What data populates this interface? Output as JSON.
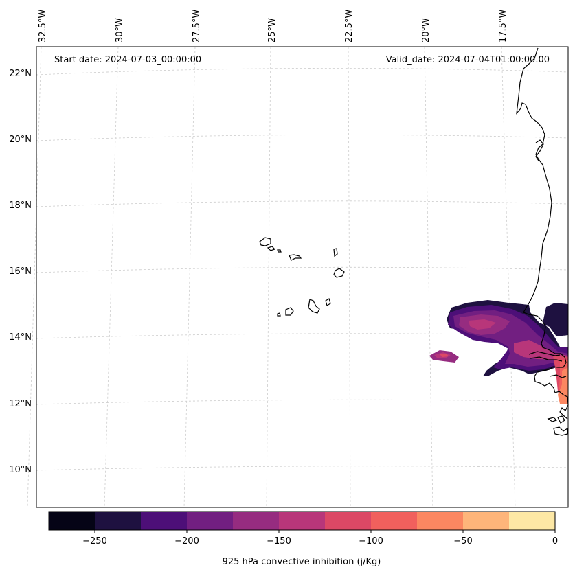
{
  "map": {
    "start_label": "Start date: 2024-07-03_00:00:00",
    "valid_label": "Valid_date: 2024-07-04T01:00:00.00",
    "lon_labels": [
      "32.5°W",
      "30°W",
      "27.5°W",
      "25°W",
      "22.5°W",
      "20°W",
      "17.5°W"
    ],
    "lat_labels": [
      "22°N",
      "20°N",
      "18°N",
      "16°N",
      "14°N",
      "12°N",
      "10°N"
    ],
    "coastline_color": "#000000",
    "gridline_color": "#cccccc"
  },
  "colorbar": {
    "label": "925 hPa convective inhibition (j/Kg)",
    "levels": [
      -275,
      -250,
      -225,
      -200,
      -175,
      -150,
      -125,
      -100,
      -75,
      -50,
      -25,
      0
    ],
    "colors": [
      "#050416",
      "#1e1140",
      "#4d0f78",
      "#721f81",
      "#962c80",
      "#b8367a",
      "#dc4865",
      "#f1605d",
      "#fb8761",
      "#feb57a",
      "#fde8a5"
    ],
    "tick_labels": [
      "−250",
      "−200",
      "−150",
      "−100",
      "−50",
      "0"
    ],
    "tick_values": [
      -250,
      -200,
      -150,
      -100,
      -50,
      0
    ]
  }
}
